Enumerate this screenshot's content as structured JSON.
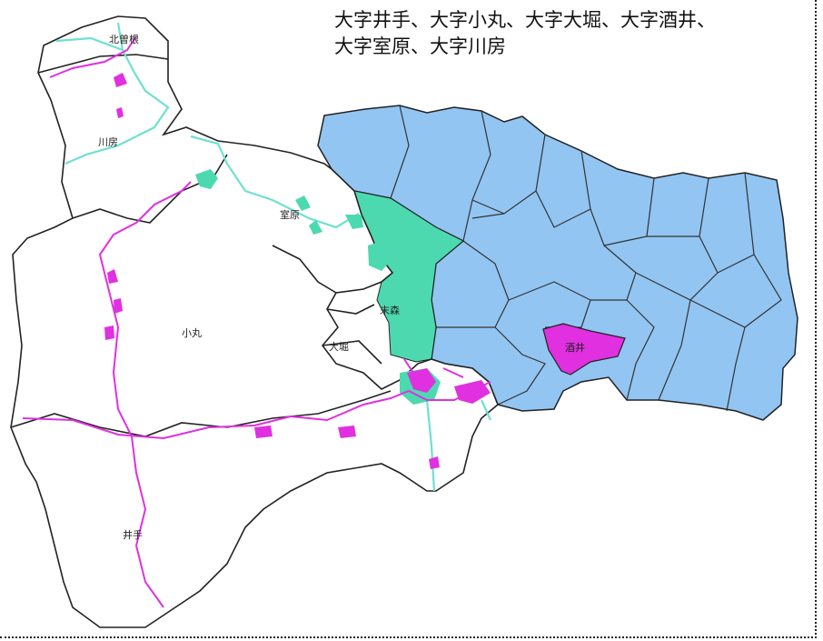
{
  "caption": {
    "line1": "大字井手、大字小丸、大字大堀、大字酒井、",
    "line2": "大字室原、大字川房"
  },
  "labels": {
    "kitasonekyo": "北曽根",
    "kawafusa": "川房",
    "murohara": "室原",
    "komaru": "小丸",
    "suemori": "末森",
    "ohori": "大堀",
    "sakai": "酒井",
    "ide": "井手"
  },
  "colors": {
    "target_area": "#ffffff",
    "blue_area": "#92c5f2",
    "green_area": "#4dd9b0",
    "magenta": "#e030e0",
    "cyan_river": "#6fe0d0",
    "boundary": "#222222"
  }
}
